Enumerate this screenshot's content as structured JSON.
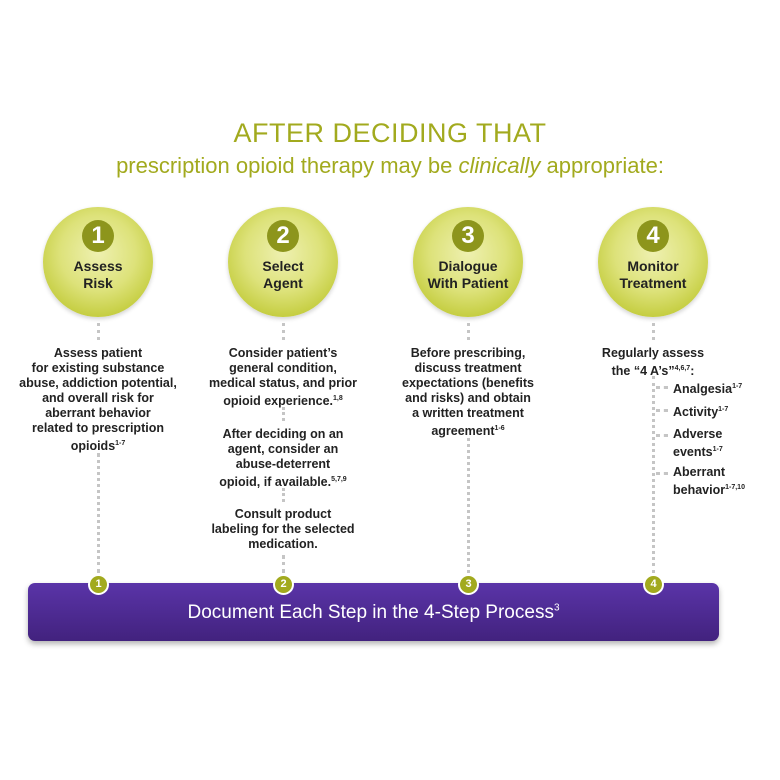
{
  "heading": {
    "line1": "AFTER DECIDING THAT",
    "line2_before": "prescription opioid therapy may be ",
    "line2_emph": "clinically",
    "line2_after": " appropriate:"
  },
  "steps": [
    {
      "number": "1",
      "label_line1": "Assess",
      "label_line2": "Risk",
      "blocks": [
        {
          "lines": [
            "Assess patient",
            "for existing substance",
            "abuse, addiction potential,",
            "and overall risk for",
            "aberrant behavior",
            "related to prescription"
          ],
          "last": "opioids",
          "sup": "1-7"
        }
      ]
    },
    {
      "number": "2",
      "label_line1": "Select",
      "label_line2": "Agent",
      "blocks": [
        {
          "lines": [
            "Consider patient’s",
            "general condition,",
            "medical status, and prior"
          ],
          "last": "opioid experience.",
          "sup": "1,8"
        },
        {
          "lines": [
            "After deciding on an",
            "agent, consider an",
            "abuse-deterrent"
          ],
          "last": "opioid, if available.",
          "sup": "5,7,9"
        },
        {
          "lines": [
            "Consult product",
            "labeling for the selected"
          ],
          "last": "medication.",
          "sup": ""
        }
      ]
    },
    {
      "number": "3",
      "label_line1": "Dialogue",
      "label_line2": "With Patient",
      "blocks": [
        {
          "lines": [
            "Before prescribing,",
            "discuss treatment",
            "expectations (benefits",
            "and risks) and obtain",
            "a written treatment"
          ],
          "last": "agreement",
          "sup": "1-6"
        }
      ]
    },
    {
      "number": "4",
      "label_line1": "Monitor",
      "label_line2": "Treatment",
      "intro_line1": "Regularly assess",
      "intro_line2": "the “4 A’s”",
      "intro_sup": "4,6,7",
      "intro_after": ":",
      "as": [
        {
          "line1": "Analgesia",
          "sup": "1-7",
          "line2": ""
        },
        {
          "line1": "Activity",
          "sup": "1-7",
          "line2": ""
        },
        {
          "line1": "Adverse",
          "sup": "1-7",
          "line2": "events"
        },
        {
          "line1": "Aberrant",
          "sup": "1-7,10",
          "line2": "behavior"
        }
      ]
    }
  ],
  "bar": {
    "text": "Document Each Step in the 4-Step Process",
    "sup": "3",
    "color": "#4b2790"
  },
  "colors": {
    "accent": "#a2aa1e",
    "circle": "#d6dc6a",
    "dots": "#c5c5c5"
  }
}
